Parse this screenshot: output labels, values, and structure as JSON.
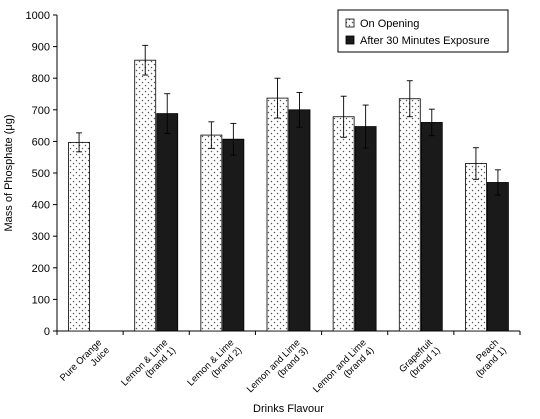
{
  "chart_data": {
    "type": "bar",
    "xlabel": "Drinks Flavour",
    "ylabel": "Mass of Phosphate (μg)",
    "ylim": [
      0,
      1000
    ],
    "yticks": [
      0,
      100,
      200,
      300,
      400,
      500,
      600,
      700,
      800,
      900,
      1000
    ],
    "categories": [
      [
        "Pure Orange",
        "Juice"
      ],
      [
        "Lemon & Lime",
        "(brand 1)"
      ],
      [
        "Lemon & Lime",
        "(brand 2)"
      ],
      [
        "Lemon and Lime",
        "(brand 3)"
      ],
      [
        "Lemon and Lime",
        "(brand 4)"
      ],
      [
        "Grapefruit",
        "(brand 1)"
      ],
      [
        "Peach",
        "(brand 1)"
      ]
    ],
    "legend_position": "top-right",
    "grid": false,
    "series": [
      {
        "name": "On Opening",
        "style": "dotted",
        "values": [
          597,
          857,
          620,
          737,
          678,
          735,
          530
        ],
        "errors": [
          30,
          47,
          42,
          63,
          65,
          57,
          50
        ]
      },
      {
        "name": "After 30 Minutes Exposure",
        "style": "solid",
        "color": "#1a1a1a",
        "values": [
          null,
          688,
          607,
          700,
          647,
          660,
          470
        ],
        "errors": [
          null,
          63,
          50,
          55,
          68,
          42,
          40
        ]
      }
    ]
  }
}
